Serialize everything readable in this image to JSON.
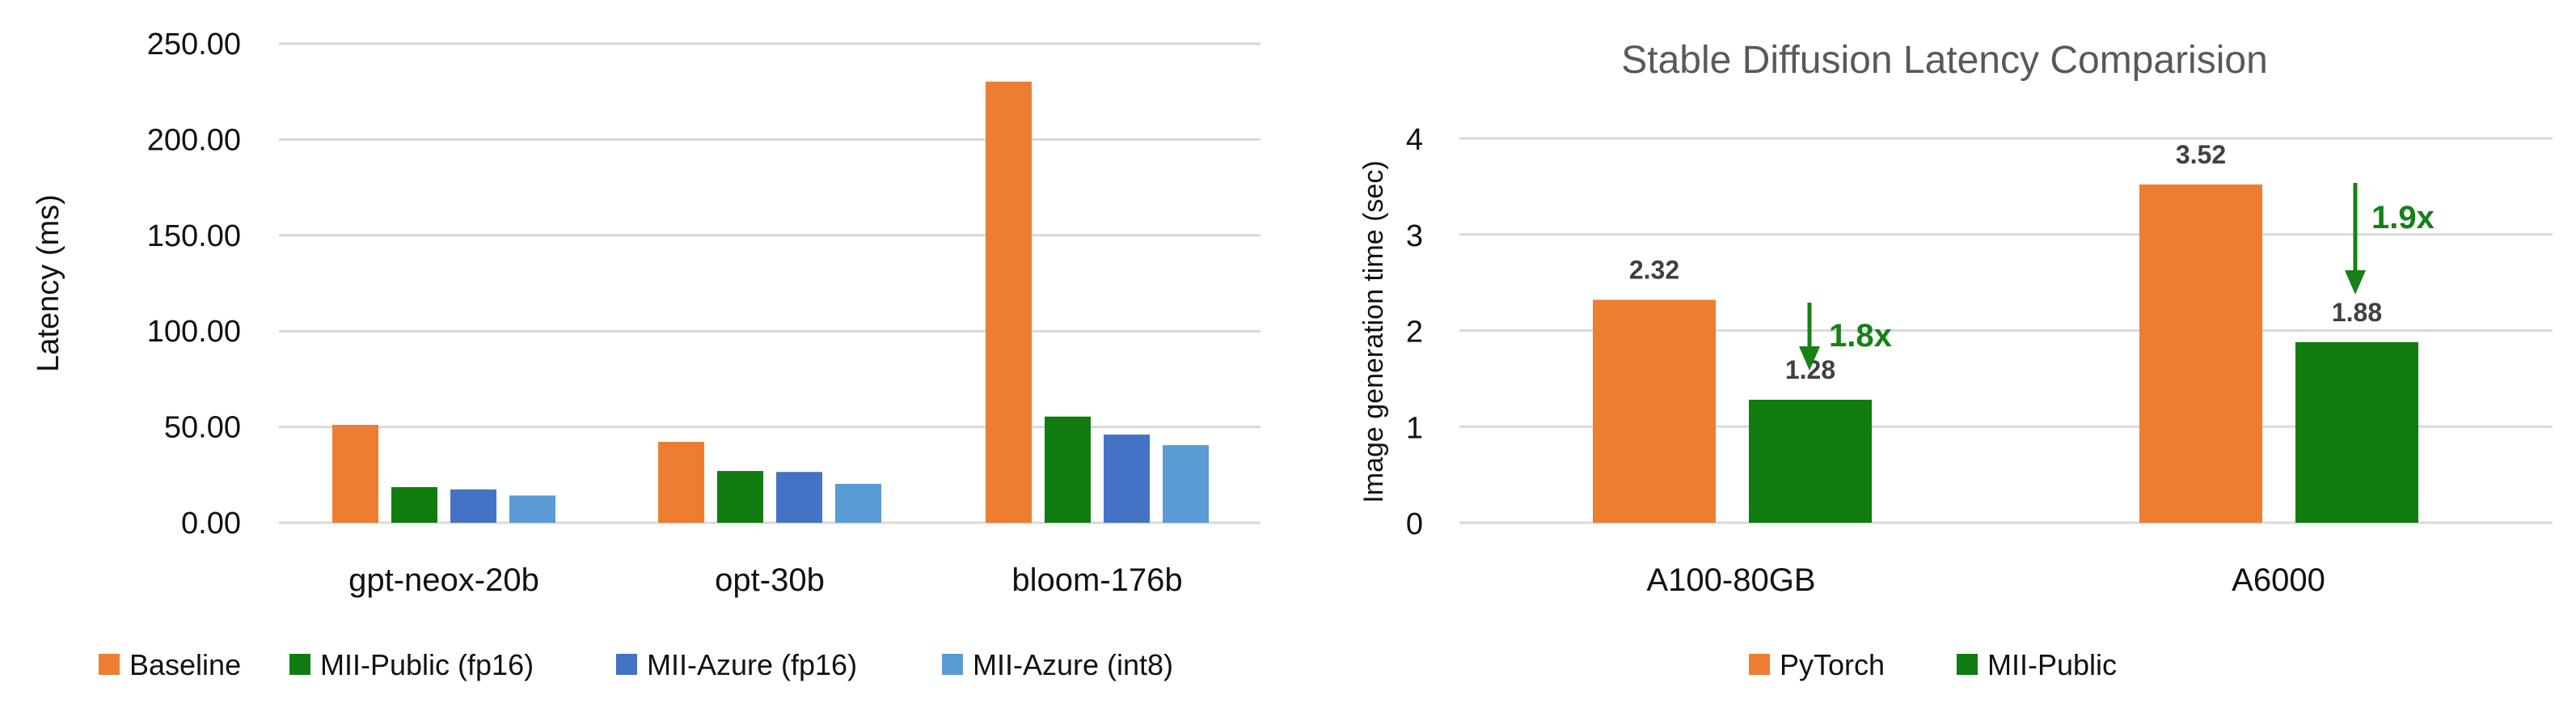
{
  "chart_data": [
    {
      "type": "bar",
      "title": "",
      "xlabel": "",
      "ylabel": "Latency (ms)",
      "ylim": [
        0,
        250
      ],
      "yticks": [
        "0.00",
        "50.00",
        "100.00",
        "150.00",
        "200.00",
        "250.00"
      ],
      "grid": true,
      "legend_position": "bottom",
      "categories": [
        "gpt-neox-20b",
        "opt-30b",
        "bloom-176b"
      ],
      "series": [
        {
          "name": "Baseline",
          "color": "#ED7D31",
          "values": [
            51.1,
            42.2,
            230.2
          ]
        },
        {
          "name": "MII-Public (fp16)",
          "color": "#107C10",
          "values": [
            18.6,
            27.0,
            55.4
          ]
        },
        {
          "name": "MII-Azure (fp16)",
          "color": "#4472C4",
          "values": [
            17.4,
            26.5,
            46.0
          ]
        },
        {
          "name": "MII-Azure (int8)",
          "color": "#5B9BD5",
          "values": [
            14.2,
            20.3,
            40.5
          ]
        }
      ]
    },
    {
      "type": "bar",
      "title": "Stable Diffusion Latency Comparision",
      "xlabel": "",
      "ylabel": "Image generation time (sec)",
      "ylim": [
        0,
        4
      ],
      "yticks": [
        "0",
        "1",
        "2",
        "3",
        "4"
      ],
      "grid": true,
      "legend_position": "bottom",
      "categories": [
        "A100-80GB",
        "A6000"
      ],
      "series": [
        {
          "name": "PyTorch",
          "color": "#ED7D31",
          "values": [
            2.32,
            3.52
          ],
          "labels": [
            "2.32",
            "3.52"
          ]
        },
        {
          "name": "MII-Public",
          "color": "#107C10",
          "values": [
            1.28,
            1.88
          ],
          "labels": [
            "1.28",
            "1.88"
          ]
        }
      ],
      "annotations": [
        {
          "category": "A100-80GB",
          "text": "1.8x",
          "color": "#178017"
        },
        {
          "category": "A6000",
          "text": "1.9x",
          "color": "#178017"
        }
      ]
    }
  ]
}
